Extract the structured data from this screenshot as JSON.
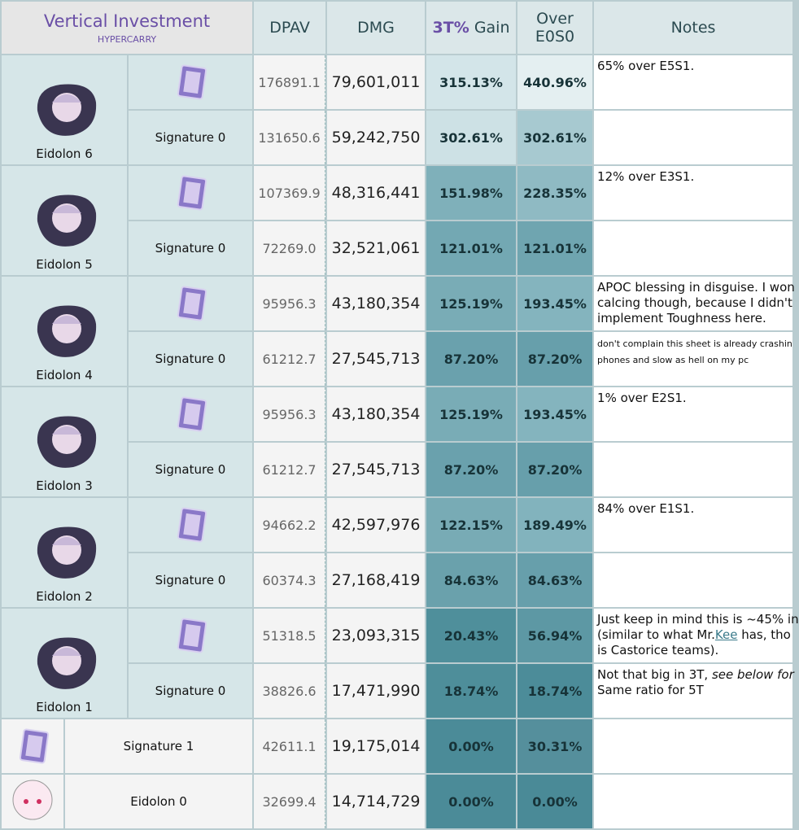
{
  "header": {
    "title": "Vertical Investment",
    "subtitle": "HYPERCARRY",
    "columns": {
      "dpav": "DPAV",
      "dmg": "DMG",
      "gain_em": "3T%",
      "gain": "Gain",
      "over": [
        "Over",
        "E0S0"
      ],
      "notes": "Notes"
    }
  },
  "groups": [
    {
      "label": "Eidolon 6",
      "rows": [
        {
          "dpav": "176891.1",
          "dmg": "79,601,011",
          "gain": "315.13%",
          "over": "440.96%",
          "gain_color": "#d3e5e9",
          "over_color": "#e4eff1",
          "notes": [
            [
              "65% over E5S1."
            ]
          ]
        },
        {
          "name": "Signature 0",
          "dpav": "131650.6",
          "dmg": "59,242,750",
          "gain": "302.61%",
          "over": "302.61%",
          "gain_color": "#cde1e5",
          "over_color": "#a7c9d0"
        }
      ]
    },
    {
      "label": "Eidolon 5",
      "rows": [
        {
          "dpav": "107369.9",
          "dmg": "48,316,441",
          "gain": "151.98%",
          "over": "228.35%",
          "gain_color": "#7fb0ba",
          "over_color": "#8fbac3",
          "notes": [
            [
              "12% over E3S1."
            ]
          ]
        },
        {
          "name": "Signature 0",
          "dpav": "72269.0",
          "dmg": "32,521,061",
          "gain": "121.01%",
          "over": "121.01%",
          "gain_color": "#73a8b3",
          "over_color": "#6fa5b0"
        }
      ]
    },
    {
      "label": "Eidolon 4",
      "rows": [
        {
          "dpav": "95956.3",
          "dmg": "43,180,354",
          "gain": "125.19%",
          "over": "193.45%",
          "gain_color": "#79acb6",
          "over_color": "#84b4be",
          "notes": [
            [
              "APOC blessing in disguise. I won"
            ],
            [
              "calcing though, because I didn't"
            ],
            [
              "implement Toughness here."
            ]
          ]
        },
        {
          "name": "Signature 0",
          "dpav": "61212.7",
          "dmg": "27,545,713",
          "gain": "87.20%",
          "over": "87.20%",
          "gain_color": "#6aa1ad",
          "over_color": "#679fab",
          "notes": [
            [
              {
                "small": "don't complain this sheet is already crashin"
              }
            ],
            [
              {
                "small": "phones and slow as hell on my pc"
              }
            ]
          ]
        }
      ]
    },
    {
      "label": "Eidolon 3",
      "rows": [
        {
          "dpav": "95956.3",
          "dmg": "43,180,354",
          "gain": "125.19%",
          "over": "193.45%",
          "gain_color": "#79acb6",
          "over_color": "#84b4be",
          "notes": [
            [
              "1% over E2S1."
            ]
          ]
        },
        {
          "name": "Signature 0",
          "dpav": "61212.7",
          "dmg": "27,545,713",
          "gain": "87.20%",
          "over": "87.20%",
          "gain_color": "#6aa1ad",
          "over_color": "#679fab"
        }
      ]
    },
    {
      "label": "Eidolon 2",
      "rows": [
        {
          "dpav": "94662.2",
          "dmg": "42,597,976",
          "gain": "122.15%",
          "over": "189.49%",
          "gain_color": "#78abb5",
          "over_color": "#82b3bd",
          "notes": [
            [
              "84% over E1S1."
            ]
          ]
        },
        {
          "name": "Signature 0",
          "dpav": "60374.3",
          "dmg": "27,168,419",
          "gain": "84.63%",
          "over": "84.63%",
          "gain_color": "#6aa1ac",
          "over_color": "#679fab"
        }
      ]
    },
    {
      "label": "Eidolon 1",
      "rows": [
        {
          "dpav": "51318.5",
          "dmg": "23,093,315",
          "gain": "20.43%",
          "over": "56.94%",
          "gain_color": "#4f8f9b",
          "over_color": "#5d98a4",
          "notes": [
            [
              "Just keep in mind this is ~45% in"
            ],
            [
              "(similar to what Mr.",
              {
                "link": "Kee"
              },
              " has, tho"
            ],
            [
              "is Castorice teams)."
            ]
          ]
        },
        {
          "name": "Signature 0",
          "dpav": "38826.6",
          "dmg": "17,471,990",
          "gain": "18.74%",
          "over": "18.74%",
          "gain_color": "#4e8e9a",
          "over_color": "#4c8c99",
          "notes": [
            [
              "Not that big in 3T, ",
              {
                "em": "see below for"
              }
            ],
            [
              "Same ratio for 5T"
            ]
          ]
        }
      ]
    }
  ],
  "singles": [
    {
      "name": "Signature 1",
      "icon": "cone",
      "dpav": "42611.1",
      "dmg": "19,175,014",
      "gain": "0.00%",
      "over": "30.31%",
      "gain_color": "#4b8b98",
      "over_color": "#558f9c"
    },
    {
      "name": "Eidolon 0",
      "icon": "chibi",
      "dpav": "32699.4",
      "dmg": "14,714,729",
      "gain": "0.00%",
      "over": "0.00%",
      "gain_color": "#4b8b98",
      "over_color": "#4a8a97"
    }
  ]
}
